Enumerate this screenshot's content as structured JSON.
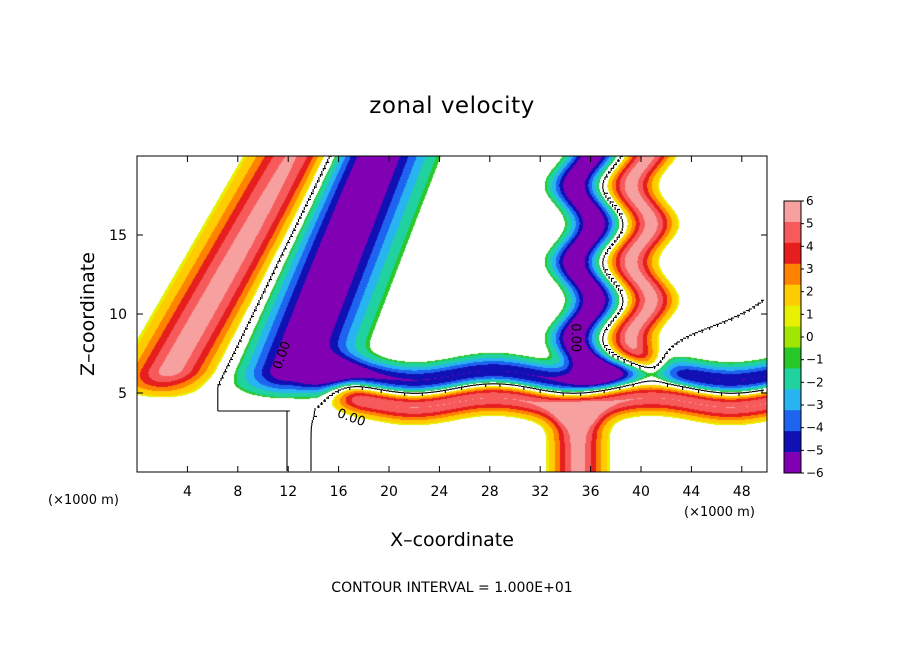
{
  "chart_data": {
    "type": "heatmap",
    "title": "zonal velocity",
    "xlabel": "X–coordinate",
    "ylabel": "Z–coordinate",
    "x_unit": "(×1000 m)",
    "z_unit": "(×1000 m)",
    "xlim": [
      0,
      50
    ],
    "ylim": [
      0,
      20
    ],
    "x_ticks": [
      4,
      8,
      12,
      16,
      20,
      24,
      28,
      32,
      36,
      40,
      44,
      48
    ],
    "y_ticks": [
      5,
      10,
      15
    ],
    "colorbar": {
      "ticks": [
        6,
        5,
        4,
        3,
        2,
        1,
        0,
        -1,
        -2,
        -3,
        -4,
        -5,
        -6
      ],
      "colors": [
        "#f7a0a0",
        "#f75a5a",
        "#e61e1e",
        "#ff8200",
        "#ffcc00",
        "#e6f000",
        "#a0e600",
        "#28c828",
        "#20d2a0",
        "#28b4f0",
        "#1e64f0",
        "#1010b4",
        "#8200b4"
      ]
    },
    "contour_labels": [
      {
        "text": "0.00",
        "x": 11.8,
        "z": 7.3,
        "angle": -70
      },
      {
        "text": "0.00",
        "x": 16.9,
        "z": 3.2,
        "angle": 20
      },
      {
        "text": "0.00",
        "x": 34.5,
        "z": 8.5,
        "angle": 90
      }
    ],
    "features": [
      {
        "kind": "tilted_jet",
        "sign": "positive",
        "x_bottom": 2,
        "z_bottom": 5.5,
        "x_top": 12.5,
        "z_top": 20,
        "width": 5,
        "amp": 6
      },
      {
        "kind": "tilted_jet",
        "sign": "negative",
        "x_bottom": 12,
        "z_bottom": 5.5,
        "x_top": 19,
        "z_top": 20,
        "width": 6,
        "amp": 7
      },
      {
        "kind": "vertical_jet",
        "sign": "positive",
        "x": 40,
        "z_bottom": 6,
        "z_top": 20,
        "width": 2.5,
        "amp": 6
      },
      {
        "kind": "vertical_jet",
        "sign": "negative",
        "x": 35.5,
        "z_bottom": 6,
        "z_top": 20,
        "width": 2.5,
        "amp": 7
      },
      {
        "kind": "layer",
        "sign": "positive",
        "z": 4.5,
        "x_from": 16,
        "x_to": 50,
        "amp": 6
      },
      {
        "kind": "layer",
        "sign": "negative",
        "z": 6,
        "x_from": 14,
        "x_to": 50,
        "amp": 6
      },
      {
        "kind": "foot_jet",
        "sign": "positive",
        "x": 35,
        "z_from": 0,
        "z_to": 4,
        "width": 1.4,
        "amp": 6
      }
    ],
    "contour_interval_text": "CONTOUR INTERVAL = 1.000E+01"
  }
}
